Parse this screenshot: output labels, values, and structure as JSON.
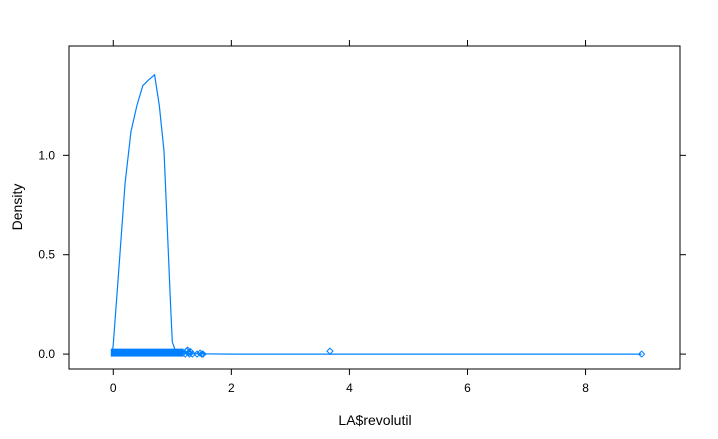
{
  "chart_data": {
    "type": "line",
    "xlabel": "LA$revolutil",
    "ylabel": "Density",
    "xlim": [
      -0.75,
      9.6
    ],
    "ylim": [
      -0.075,
      1.55
    ],
    "x_ticks": [
      {
        "value": 0,
        "label": "0"
      },
      {
        "value": 2,
        "label": "2"
      },
      {
        "value": 4,
        "label": "4"
      },
      {
        "value": 6,
        "label": "6"
      },
      {
        "value": 8,
        "label": "8"
      }
    ],
    "y_ticks": [
      {
        "value": 0,
        "label": "0.0"
      },
      {
        "value": 0.5,
        "label": "0.5"
      },
      {
        "value": 1,
        "label": "1.0"
      }
    ],
    "line_color": "#0080ff",
    "density_curve": {
      "x": [
        -0.02,
        0.0,
        0.1,
        0.2,
        0.3,
        0.4,
        0.5,
        0.6,
        0.7,
        0.78,
        0.86,
        0.92,
        0.97,
        1.0,
        1.05,
        1.1,
        1.3,
        2.0,
        3.0,
        4.0,
        5.0,
        6.0,
        7.0,
        8.0,
        8.95
      ],
      "y": [
        0.0,
        0.05,
        0.45,
        0.86,
        1.12,
        1.25,
        1.35,
        1.38,
        1.405,
        1.25,
        1.02,
        0.6,
        0.25,
        0.06,
        0.02,
        0.006,
        0.002,
        0.0,
        0.0,
        0.0,
        0.0,
        0.0,
        0.0,
        0.0,
        0.0
      ]
    },
    "rug_points": {
      "x": [
        1.18,
        1.22,
        1.24,
        1.26,
        1.28,
        1.29,
        1.31,
        1.34,
        1.42,
        1.47,
        1.5,
        1.52,
        3.67,
        8.95
      ],
      "y": [
        0.005,
        0.0,
        0.015,
        0.02,
        0.008,
        0.0,
        0.012,
        0.0,
        0.0,
        0.005,
        0.0,
        0.0,
        0.015,
        0.0
      ]
    },
    "rug_band": {
      "x_start": 0.0,
      "x_end": 1.15,
      "y_low": -0.01,
      "y_high": 0.025
    },
    "grid": false,
    "legend": "none"
  }
}
